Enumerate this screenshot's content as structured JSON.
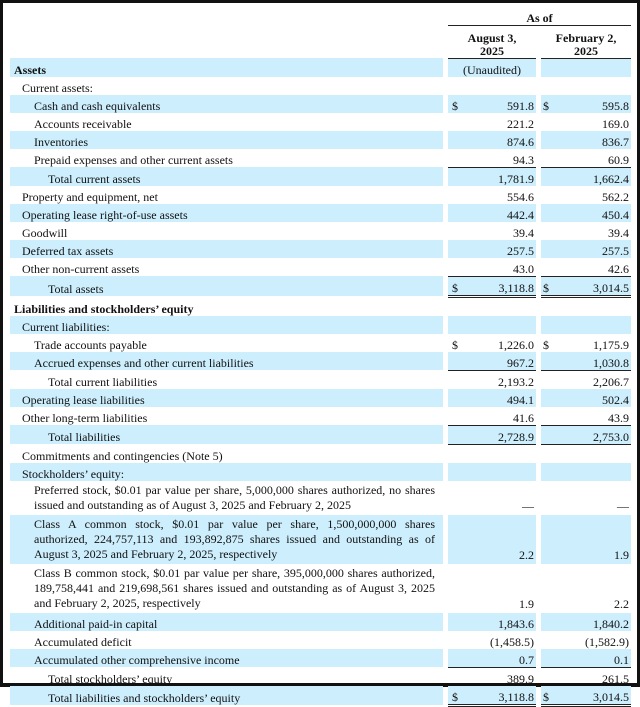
{
  "header": {
    "as_of": "As of",
    "col1": "August 3, 2025",
    "col2": "February 2, 2025",
    "unaudited": "(Unaudited)"
  },
  "rows": [
    {
      "label": "Assets",
      "bold": true,
      "shade": true,
      "indent": 0
    },
    {
      "label": "Current assets:",
      "indent": 1
    },
    {
      "label": "Cash and cash equivalents",
      "d1": "$",
      "v1": "591.8",
      "d2": "$",
      "v2": "595.8",
      "shade": true,
      "indent": 2
    },
    {
      "label": "Accounts receivable",
      "v1": "221.2",
      "v2": "169.0",
      "indent": 2
    },
    {
      "label": "Inventories",
      "v1": "874.6",
      "v2": "836.7",
      "shade": true,
      "indent": 2
    },
    {
      "label": "Prepaid expenses and other current assets",
      "v1": "94.3",
      "v2": "60.9",
      "indent": 2,
      "line": "ul"
    },
    {
      "label": "Total current assets",
      "v1": "1,781.9",
      "v2": "1,662.4",
      "shade": true,
      "indent": 3
    },
    {
      "label": "Property and equipment, net",
      "v1": "554.6",
      "v2": "562.2",
      "indent": 1
    },
    {
      "label": "Operating lease right-of-use assets",
      "v1": "442.4",
      "v2": "450.4",
      "shade": true,
      "indent": 1
    },
    {
      "label": "Goodwill",
      "v1": "39.4",
      "v2": "39.4",
      "indent": 1
    },
    {
      "label": "Deferred tax assets",
      "v1": "257.5",
      "v2": "257.5",
      "shade": true,
      "indent": 1
    },
    {
      "label": "Other non-current assets",
      "v1": "43.0",
      "v2": "42.6",
      "indent": 1,
      "line": "ul"
    },
    {
      "label": "Total assets",
      "d1": "$",
      "v1": "3,118.8",
      "d2": "$",
      "v2": "3,014.5",
      "shade": true,
      "indent": 3,
      "line": "dl"
    },
    {
      "label": "Liabilities and stockholders’ equity",
      "bold": true,
      "indent": 0
    },
    {
      "label": "Current liabilities:",
      "shade": true,
      "indent": 1
    },
    {
      "label": "Trade accounts payable",
      "d1": "$",
      "v1": "1,226.0",
      "d2": "$",
      "v2": "1,175.9",
      "indent": 2
    },
    {
      "label": "Accrued expenses and other current liabilities",
      "v1": "967.2",
      "v2": "1,030.8",
      "shade": true,
      "indent": 2,
      "line": "ul"
    },
    {
      "label": "Total current liabilities",
      "v1": "2,193.2",
      "v2": "2,206.7",
      "indent": 3
    },
    {
      "label": "Operating lease liabilities",
      "v1": "494.1",
      "v2": "502.4",
      "shade": true,
      "indent": 1
    },
    {
      "label": "Other long-term liabilities",
      "v1": "41.6",
      "v2": "43.9",
      "indent": 1,
      "line": "ul"
    },
    {
      "label": "Total liabilities",
      "v1": "2,728.9",
      "v2": "2,753.0",
      "shade": true,
      "indent": 3,
      "line": "ul"
    },
    {
      "label": "Commitments and contingencies (Note 5)",
      "indent": 1
    },
    {
      "label": "Stockholders’ equity:",
      "shade": true,
      "indent": 1
    },
    {
      "label": "Preferred stock, $0.01 par value per share, 5,000,000 shares authorized, no shares issued and outstanding as of August 3, 2025 and February 2, 2025",
      "v1": "—",
      "v2": "—",
      "indent": 2,
      "multi": true
    },
    {
      "label": "Class A common stock, $0.01 par value per share, 1,500,000,000 shares authorized, 224,757,113 and 193,892,875 shares issued and outstanding as of August 3, 2025 and February 2, 2025, respectively",
      "v1": "2.2",
      "v2": "1.9",
      "shade": true,
      "indent": 2,
      "multi": true
    },
    {
      "label": "Class B common stock, $0.01 par value per share, 395,000,000 shares authorized, 189,758,441 and 219,698,561 shares issued and outstanding as of August 3, 2025 and February 2, 2025, respectively",
      "v1": "1.9",
      "v2": "2.2",
      "indent": 2,
      "multi": true
    },
    {
      "label": "Additional paid-in capital",
      "v1": "1,843.6",
      "v2": "1,840.2",
      "shade": true,
      "indent": 2
    },
    {
      "label": "Accumulated deficit",
      "v1": "(1,458.5)",
      "v2": "(1,582.9)",
      "indent": 2
    },
    {
      "label": "Accumulated other comprehensive income",
      "v1": "0.7",
      "v2": "0.1",
      "shade": true,
      "indent": 2,
      "line": "ul"
    },
    {
      "label": "Total stockholders’ equity",
      "v1": "389.9",
      "v2": "261.5",
      "indent": 3
    },
    {
      "label": "Total liabilities and stockholders’ equity",
      "d1": "$",
      "v1": "3,118.8",
      "d2": "$",
      "v2": "3,014.5",
      "shade": true,
      "indent": 3,
      "line": "dl"
    }
  ],
  "colors": {
    "shade": "#cdeefd"
  }
}
